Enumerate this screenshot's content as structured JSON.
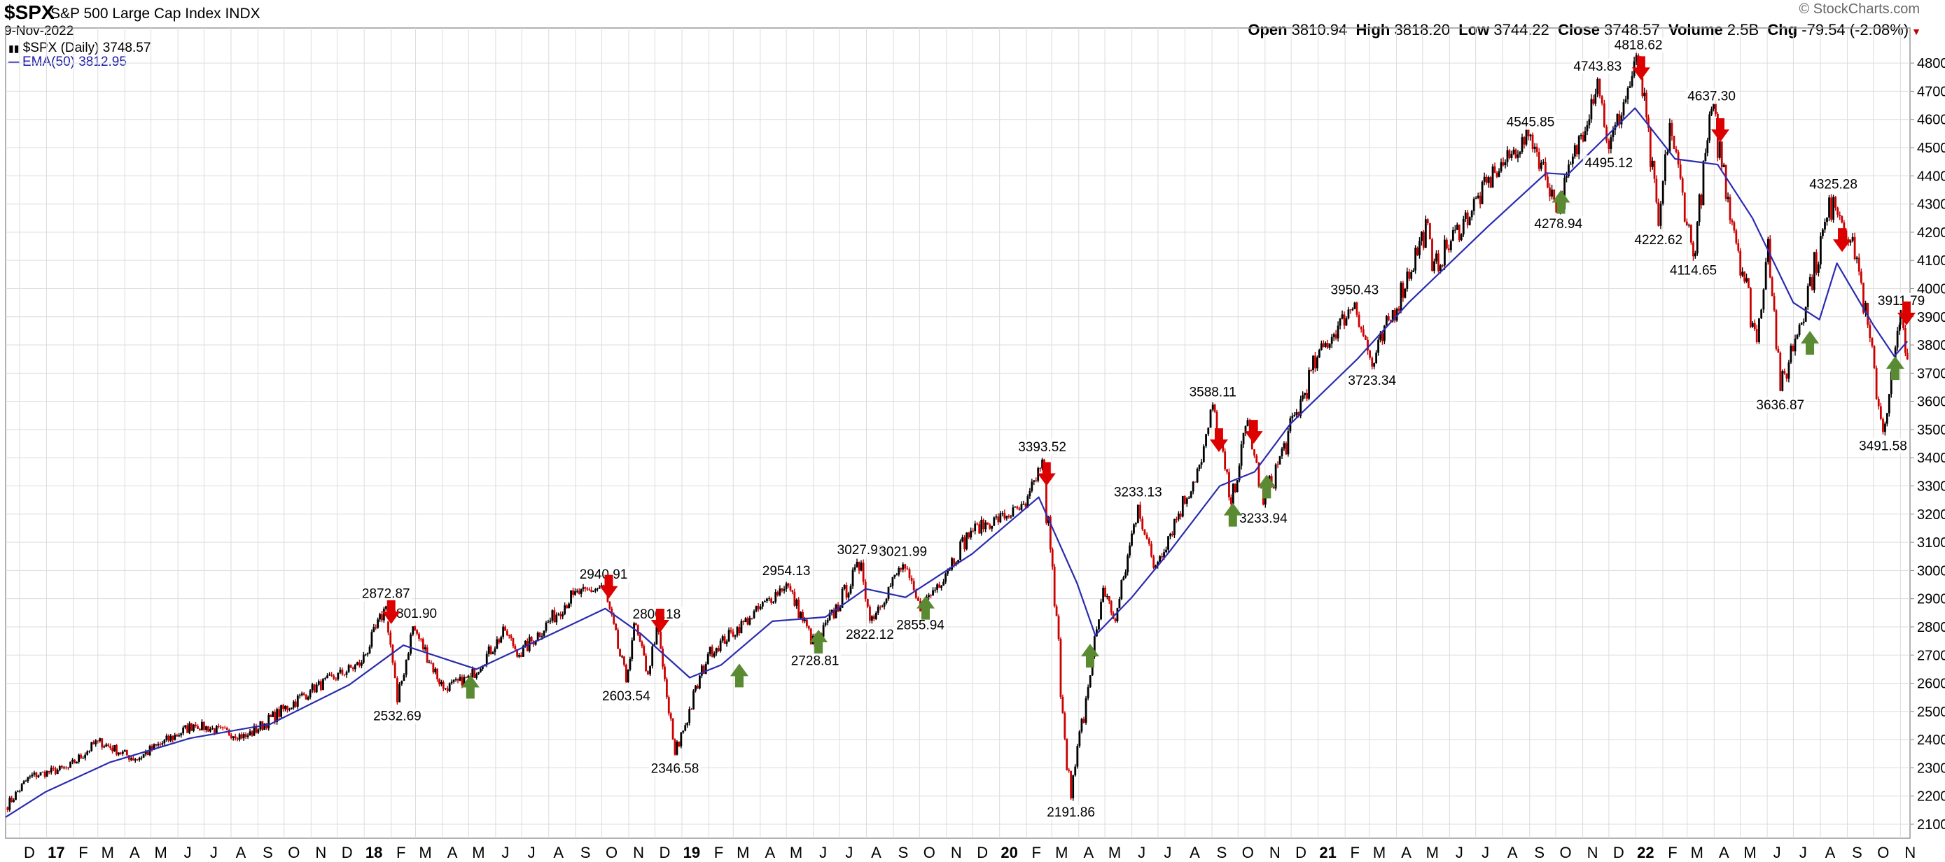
{
  "header": {
    "symbol": "$SPX",
    "name": "S&P 500 Large Cap Index",
    "exchange": "INDX",
    "date": "9-Nov-2022",
    "open_label": "Open",
    "open": "3810.94",
    "high_label": "High",
    "high": "3818.20",
    "low_label": "Low",
    "low": "3744.22",
    "close_label": "Close",
    "close": "3748.57",
    "volume_label": "Volume",
    "volume": "2.5B",
    "chg_label": "Chg",
    "chg": "-79.54 (-2.08%)",
    "watermark": "© StockCharts.com"
  },
  "legend": {
    "price": "$SPX (Daily) 3748.57",
    "ema": "EMA(50) 3812.95"
  },
  "colors": {
    "candle_up": "#000000",
    "candle_down": "#cc0000",
    "ema": "#2b2bb0",
    "down_arrow": "#dd0000",
    "up_arrow": "#5a8a32",
    "grid": "#dcdcdc"
  },
  "chart_data": {
    "type": "line",
    "x_scale": "date",
    "y_axis_position": "right",
    "ylim": [
      2100,
      4850
    ],
    "yticks": [
      2100,
      2200,
      2300,
      2400,
      2500,
      2600,
      2700,
      2800,
      2900,
      3000,
      3100,
      3200,
      3300,
      3400,
      3500,
      3600,
      3700,
      3800,
      3900,
      4000,
      4100,
      4200,
      4300,
      4400,
      4500,
      4600,
      4700,
      4800
    ],
    "xticks": [
      {
        "label": "D",
        "date": "2016-12-01"
      },
      {
        "label": "17",
        "date": "2017-01-01"
      },
      {
        "label": "F",
        "date": "2017-02-01"
      },
      {
        "label": "M",
        "date": "2017-03-01"
      },
      {
        "label": "A",
        "date": "2017-04-01"
      },
      {
        "label": "M",
        "date": "2017-05-01"
      },
      {
        "label": "J",
        "date": "2017-06-01"
      },
      {
        "label": "J",
        "date": "2017-07-01"
      },
      {
        "label": "A",
        "date": "2017-08-01"
      },
      {
        "label": "S",
        "date": "2017-09-01"
      },
      {
        "label": "O",
        "date": "2017-10-01"
      },
      {
        "label": "N",
        "date": "2017-11-01"
      },
      {
        "label": "D",
        "date": "2017-12-01"
      },
      {
        "label": "18",
        "date": "2018-01-01"
      },
      {
        "label": "F",
        "date": "2018-02-01"
      },
      {
        "label": "M",
        "date": "2018-03-01"
      },
      {
        "label": "A",
        "date": "2018-04-01"
      },
      {
        "label": "M",
        "date": "2018-05-01"
      },
      {
        "label": "J",
        "date": "2018-06-01"
      },
      {
        "label": "J",
        "date": "2018-07-01"
      },
      {
        "label": "A",
        "date": "2018-08-01"
      },
      {
        "label": "S",
        "date": "2018-09-01"
      },
      {
        "label": "O",
        "date": "2018-10-01"
      },
      {
        "label": "N",
        "date": "2018-11-01"
      },
      {
        "label": "D",
        "date": "2018-12-01"
      },
      {
        "label": "19",
        "date": "2019-01-01"
      },
      {
        "label": "F",
        "date": "2019-02-01"
      },
      {
        "label": "M",
        "date": "2019-03-01"
      },
      {
        "label": "A",
        "date": "2019-04-01"
      },
      {
        "label": "M",
        "date": "2019-05-01"
      },
      {
        "label": "J",
        "date": "2019-06-01"
      },
      {
        "label": "J",
        "date": "2019-07-01"
      },
      {
        "label": "A",
        "date": "2019-08-01"
      },
      {
        "label": "S",
        "date": "2019-09-01"
      },
      {
        "label": "O",
        "date": "2019-10-01"
      },
      {
        "label": "N",
        "date": "2019-11-01"
      },
      {
        "label": "D",
        "date": "2019-12-01"
      },
      {
        "label": "20",
        "date": "2020-01-01"
      },
      {
        "label": "F",
        "date": "2020-02-01"
      },
      {
        "label": "M",
        "date": "2020-03-01"
      },
      {
        "label": "A",
        "date": "2020-04-01"
      },
      {
        "label": "M",
        "date": "2020-05-01"
      },
      {
        "label": "J",
        "date": "2020-06-01"
      },
      {
        "label": "J",
        "date": "2020-07-01"
      },
      {
        "label": "A",
        "date": "2020-08-01"
      },
      {
        "label": "S",
        "date": "2020-09-01"
      },
      {
        "label": "O",
        "date": "2020-10-01"
      },
      {
        "label": "N",
        "date": "2020-11-01"
      },
      {
        "label": "D",
        "date": "2020-12-01"
      },
      {
        "label": "21",
        "date": "2021-01-01"
      },
      {
        "label": "F",
        "date": "2021-02-01"
      },
      {
        "label": "M",
        "date": "2021-03-01"
      },
      {
        "label": "A",
        "date": "2021-04-01"
      },
      {
        "label": "M",
        "date": "2021-05-01"
      },
      {
        "label": "J",
        "date": "2021-06-01"
      },
      {
        "label": "J",
        "date": "2021-07-01"
      },
      {
        "label": "A",
        "date": "2021-08-01"
      },
      {
        "label": "S",
        "date": "2021-09-01"
      },
      {
        "label": "O",
        "date": "2021-10-01"
      },
      {
        "label": "N",
        "date": "2021-11-01"
      },
      {
        "label": "D",
        "date": "2021-12-01"
      },
      {
        "label": "22",
        "date": "2022-01-01"
      },
      {
        "label": "F",
        "date": "2022-02-01"
      },
      {
        "label": "M",
        "date": "2022-03-01"
      },
      {
        "label": "A",
        "date": "2022-04-01"
      },
      {
        "label": "M",
        "date": "2022-05-01"
      },
      {
        "label": "J",
        "date": "2022-06-01"
      },
      {
        "label": "J",
        "date": "2022-07-01"
      },
      {
        "label": "A",
        "date": "2022-08-01"
      },
      {
        "label": "S",
        "date": "2022-09-01"
      },
      {
        "label": "O",
        "date": "2022-10-01"
      },
      {
        "label": "N",
        "date": "2022-11-01"
      }
    ],
    "price_path": [
      [
        "2016-11-15",
        2160
      ],
      [
        "2016-12-13",
        2270
      ],
      [
        "2017-01-26",
        2300
      ],
      [
        "2017-03-01",
        2395
      ],
      [
        "2017-04-13",
        2330
      ],
      [
        "2017-06-19",
        2453
      ],
      [
        "2017-08-18",
        2410
      ],
      [
        "2017-10-31",
        2575
      ],
      [
        "2017-12-29",
        2673
      ],
      [
        "2018-01-26",
        2872.87
      ],
      [
        "2018-02-08",
        2532.69
      ],
      [
        "2018-02-26",
        2801.9
      ],
      [
        "2018-04-02",
        2581
      ],
      [
        "2018-05-03",
        2622
      ],
      [
        "2018-06-12",
        2786
      ],
      [
        "2018-06-28",
        2700
      ],
      [
        "2018-08-29",
        2914
      ],
      [
        "2018-10-03",
        2940.91
      ],
      [
        "2018-10-29",
        2603.54
      ],
      [
        "2018-11-07",
        2813
      ],
      [
        "2018-11-23",
        2632
      ],
      [
        "2018-12-03",
        2800.18
      ],
      [
        "2018-12-24",
        2346.58
      ],
      [
        "2019-01-31",
        2704
      ],
      [
        "2019-03-20",
        2832
      ],
      [
        "2019-05-01",
        2954.13
      ],
      [
        "2019-06-03",
        2728.81
      ],
      [
        "2019-07-26",
        3027.98
      ],
      [
        "2019-08-05",
        2822.12
      ],
      [
        "2019-09-12",
        3021.99
      ],
      [
        "2019-10-02",
        2855.94
      ],
      [
        "2019-11-29",
        3141
      ],
      [
        "2020-01-31",
        3225
      ],
      [
        "2020-02-19",
        3393.52
      ],
      [
        "2020-03-23",
        2191.86
      ],
      [
        "2020-04-29",
        2939
      ],
      [
        "2020-05-13",
        2820
      ],
      [
        "2020-06-08",
        3233.13
      ],
      [
        "2020-06-26",
        3009
      ],
      [
        "2020-08-20",
        3385
      ],
      [
        "2020-09-02",
        3588.11
      ],
      [
        "2020-09-23",
        3236
      ],
      [
        "2020-10-12",
        3534
      ],
      [
        "2020-10-30",
        3233.94
      ],
      [
        "2020-12-31",
        3756
      ],
      [
        "2021-02-12",
        3950.43
      ],
      [
        "2021-03-04",
        3723.34
      ],
      [
        "2021-05-07",
        4232
      ],
      [
        "2021-05-12",
        4063
      ],
      [
        "2021-07-23",
        4411
      ],
      [
        "2021-09-02",
        4545.85
      ],
      [
        "2021-10-04",
        4278.94
      ],
      [
        "2021-11-18",
        4743.83
      ],
      [
        "2021-12-01",
        4495.12
      ],
      [
        "2022-01-04",
        4818.62
      ],
      [
        "2022-01-27",
        4222.62
      ],
      [
        "2022-02-09",
        4587
      ],
      [
        "2022-03-08",
        4114.65
      ],
      [
        "2022-03-29",
        4637.3
      ],
      [
        "2022-05-20",
        3810
      ],
      [
        "2022-06-02",
        4176
      ],
      [
        "2022-06-16",
        3636.87
      ],
      [
        "2022-08-16",
        4325.28
      ],
      [
        "2022-09-12",
        4110
      ],
      [
        "2022-10-12",
        3491.58
      ],
      [
        "2022-10-31",
        3871
      ],
      [
        "2022-11-02",
        3911.79
      ],
      [
        "2022-11-09",
        3748.57
      ]
    ],
    "ema_path": [
      [
        "2016-11-15",
        2125
      ],
      [
        "2016-12-31",
        2215
      ],
      [
        "2017-03-15",
        2320
      ],
      [
        "2017-06-15",
        2405
      ],
      [
        "2017-09-15",
        2455
      ],
      [
        "2017-12-15",
        2595
      ],
      [
        "2018-02-15",
        2735
      ],
      [
        "2018-04-15",
        2675
      ],
      [
        "2018-05-10",
        2650
      ],
      [
        "2018-08-01",
        2770
      ],
      [
        "2018-10-05",
        2865
      ],
      [
        "2018-11-15",
        2775
      ],
      [
        "2019-01-10",
        2620
      ],
      [
        "2019-02-15",
        2665
      ],
      [
        "2019-04-15",
        2820
      ],
      [
        "2019-06-15",
        2835
      ],
      [
        "2019-07-31",
        2935
      ],
      [
        "2019-09-15",
        2905
      ],
      [
        "2019-12-01",
        3060
      ],
      [
        "2020-02-15",
        3260
      ],
      [
        "2020-03-30",
        2955
      ],
      [
        "2020-04-20",
        2770
      ],
      [
        "2020-06-01",
        2905
      ],
      [
        "2020-07-15",
        3070
      ],
      [
        "2020-09-10",
        3300
      ],
      [
        "2020-10-20",
        3350
      ],
      [
        "2020-11-30",
        3520
      ],
      [
        "2021-02-15",
        3750
      ],
      [
        "2021-04-15",
        3950
      ],
      [
        "2021-07-15",
        4220
      ],
      [
        "2021-09-20",
        4410
      ],
      [
        "2021-10-15",
        4405
      ],
      [
        "2021-12-31",
        4640
      ],
      [
        "2022-02-15",
        4460
      ],
      [
        "2022-04-05",
        4440
      ],
      [
        "2022-05-15",
        4250
      ],
      [
        "2022-07-01",
        3950
      ],
      [
        "2022-07-31",
        3890
      ],
      [
        "2022-08-20",
        4090
      ],
      [
        "2022-10-01",
        3870
      ],
      [
        "2022-10-25",
        3760
      ],
      [
        "2022-11-09",
        3812.95
      ]
    ],
    "peak_labels": [
      {
        "date": "2018-01-26",
        "value": 2872.87,
        "text": "2872.87",
        "pos": "above"
      },
      {
        "date": "2018-02-08",
        "value": 2532.69,
        "text": "2532.69",
        "pos": "below"
      },
      {
        "date": "2018-02-26",
        "value": 2801.9,
        "text": "2801.90",
        "pos": "above"
      },
      {
        "date": "2018-10-03",
        "value": 2940.91,
        "text": "2940.91",
        "pos": "above"
      },
      {
        "date": "2018-10-29",
        "value": 2603.54,
        "text": "2603.54",
        "pos": "below"
      },
      {
        "date": "2018-12-03",
        "value": 2800.18,
        "text": "2800.18",
        "pos": "above"
      },
      {
        "date": "2018-12-24",
        "value": 2346.58,
        "text": "2346.58",
        "pos": "below"
      },
      {
        "date": "2019-05-01",
        "value": 2954.13,
        "text": "2954.13",
        "pos": "above"
      },
      {
        "date": "2019-06-03",
        "value": 2728.81,
        "text": "2728.81",
        "pos": "below"
      },
      {
        "date": "2019-07-26",
        "value": 3027.98,
        "text": "3027.98",
        "pos": "above"
      },
      {
        "date": "2019-08-05",
        "value": 2822.12,
        "text": "2822.12",
        "pos": "below"
      },
      {
        "date": "2019-09-12",
        "value": 3021.99,
        "text": "3021.99",
        "pos": "above"
      },
      {
        "date": "2019-10-02",
        "value": 2855.94,
        "text": "2855.94",
        "pos": "below"
      },
      {
        "date": "2020-02-19",
        "value": 3393.52,
        "text": "3393.52",
        "pos": "above"
      },
      {
        "date": "2020-03-23",
        "value": 2191.86,
        "text": "2191.86",
        "pos": "below"
      },
      {
        "date": "2020-06-08",
        "value": 3233.13,
        "text": "3233.13",
        "pos": "above"
      },
      {
        "date": "2020-09-02",
        "value": 3588.11,
        "text": "3588.11",
        "pos": "above"
      },
      {
        "date": "2020-10-30",
        "value": 3233.94,
        "text": "3233.94",
        "pos": "below"
      },
      {
        "date": "2021-02-12",
        "value": 3950.43,
        "text": "3950.43",
        "pos": "above"
      },
      {
        "date": "2021-03-04",
        "value": 3723.34,
        "text": "3723.34",
        "pos": "below"
      },
      {
        "date": "2021-09-02",
        "value": 4545.85,
        "text": "4545.85",
        "pos": "above"
      },
      {
        "date": "2021-10-04",
        "value": 4278.94,
        "text": "4278.94",
        "pos": "below"
      },
      {
        "date": "2021-11-18",
        "value": 4743.83,
        "text": "4743.83",
        "pos": "above"
      },
      {
        "date": "2021-12-01",
        "value": 4495.12,
        "text": "4495.12",
        "pos": "below"
      },
      {
        "date": "2022-01-04",
        "value": 4818.62,
        "text": "4818.62",
        "pos": "above"
      },
      {
        "date": "2022-01-27",
        "value": 4222.62,
        "text": "4222.62",
        "pos": "below"
      },
      {
        "date": "2022-03-08",
        "value": 4114.65,
        "text": "4114.65",
        "pos": "below"
      },
      {
        "date": "2022-03-29",
        "value": 4637.3,
        "text": "4637.30",
        "pos": "above"
      },
      {
        "date": "2022-06-16",
        "value": 3636.87,
        "text": "3636.87",
        "pos": "below"
      },
      {
        "date": "2022-08-16",
        "value": 4325.28,
        "text": "4325.28",
        "pos": "above"
      },
      {
        "date": "2022-10-12",
        "value": 3491.58,
        "text": "3491.58",
        "pos": "below"
      },
      {
        "date": "2022-11-02",
        "value": 3911.79,
        "text": "3911.79",
        "pos": "above"
      }
    ],
    "down_arrows": [
      {
        "date": "2018-02-01",
        "value": 2810
      },
      {
        "date": "2018-10-09",
        "value": 2900
      },
      {
        "date": "2018-12-07",
        "value": 2780
      },
      {
        "date": "2020-02-24",
        "value": 3300
      },
      {
        "date": "2020-09-09",
        "value": 3420
      },
      {
        "date": "2020-10-19",
        "value": 3450
      },
      {
        "date": "2022-01-07",
        "value": 4740
      },
      {
        "date": "2022-04-08",
        "value": 4520
      },
      {
        "date": "2022-08-26",
        "value": 4130
      },
      {
        "date": "2022-11-08",
        "value": 3870
      }
    ],
    "up_arrows": [
      {
        "date": "2018-05-03",
        "value": 2630
      },
      {
        "date": "2019-03-08",
        "value": 2670
      },
      {
        "date": "2019-06-07",
        "value": 2790
      },
      {
        "date": "2019-10-08",
        "value": 2910
      },
      {
        "date": "2020-04-14",
        "value": 2740
      },
      {
        "date": "2020-09-25",
        "value": 3240
      },
      {
        "date": "2020-11-03",
        "value": 3340
      },
      {
        "date": "2021-10-07",
        "value": 4350
      },
      {
        "date": "2022-07-20",
        "value": 3850
      },
      {
        "date": "2022-10-26",
        "value": 3760
      }
    ]
  }
}
